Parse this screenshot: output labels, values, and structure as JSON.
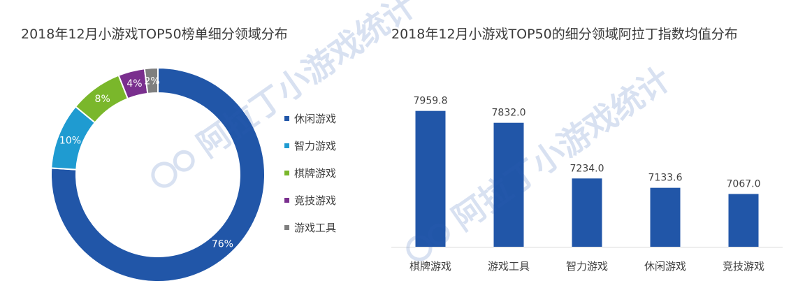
{
  "left_title": "2018年12月小游戏TOP50榜单细分领域分布",
  "right_title": "2018年12月小游戏TOP50的细分领域阿拉丁指数均值分布",
  "watermark_text": "阿拉丁小游戏统计",
  "chart_data": [
    {
      "type": "pie",
      "variant": "donut",
      "title": "2018年12月小游戏TOP50榜单细分领域分布",
      "categories": [
        "休闲游戏",
        "智力游戏",
        "棋牌游戏",
        "竞技游戏",
        "游戏工具"
      ],
      "values": [
        76,
        10,
        8,
        4,
        2
      ],
      "labels": [
        "76%",
        "10%",
        "8%",
        "4%",
        "2%"
      ],
      "colors": [
        "#2156a8",
        "#1f9bd1",
        "#7ab72b",
        "#7a2f8e",
        "#7f7f7f"
      ],
      "legend_position": "right"
    },
    {
      "type": "bar",
      "title": "2018年12月小游戏TOP50的细分领域阿拉丁指数均值分布",
      "categories": [
        "棋牌游戏",
        "游戏工具",
        "智力游戏",
        "休闲游戏",
        "竞技游戏"
      ],
      "values": [
        7959.8,
        7832.0,
        7234.0,
        7133.6,
        7067.0
      ],
      "value_labels": [
        "7959.8",
        "7832.0",
        "7234.0",
        "7133.6",
        "7067.0"
      ],
      "bar_color": "#2156a8",
      "ylim": [
        6500,
        8100
      ],
      "grid": false,
      "axis_color": "#d9d9d9"
    }
  ]
}
